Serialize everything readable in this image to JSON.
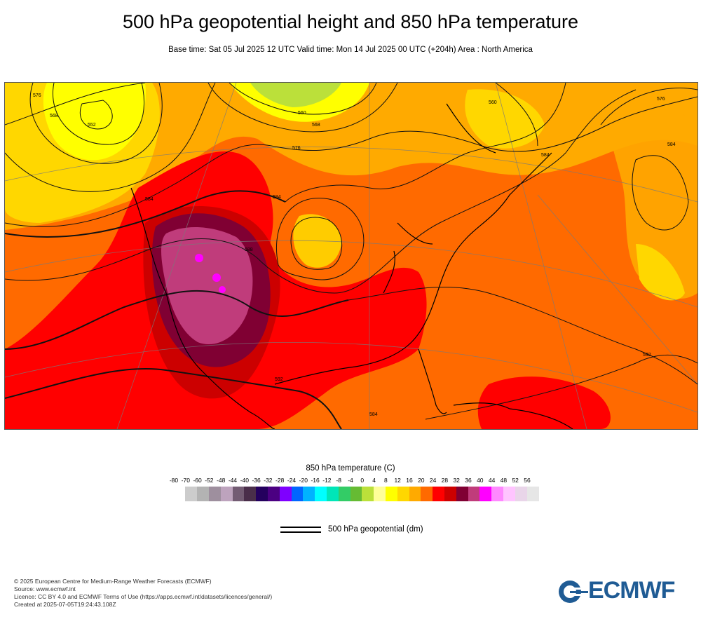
{
  "title": "500 hPa geopotential height and 850 hPa temperature",
  "subtitle": "Base time: Sat 05 Jul 2025 12 UTC Valid time: Mon 14 Jul 2025 00 UTC (+204h) Area : North America",
  "map": {
    "isoline_labels": [
      "552",
      "568",
      "560",
      "576",
      "560",
      "568",
      "576",
      "584",
      "584",
      "588",
      "576",
      "592",
      "584",
      "592",
      "584",
      "584"
    ]
  },
  "legend": {
    "temperature_title": "850 hPa temperature (C)",
    "ticks": [
      "-80",
      "-70",
      "-60",
      "-52",
      "-48",
      "-44",
      "-40",
      "-36",
      "-32",
      "-28",
      "-24",
      "-20",
      "-16",
      "-12",
      "-8",
      "-4",
      "0",
      "4",
      "8",
      "12",
      "16",
      "20",
      "24",
      "28",
      "32",
      "36",
      "40",
      "44",
      "48",
      "52",
      "56"
    ],
    "colors": [
      "#e6e6e6",
      "#cccccc",
      "#b3b3b3",
      "#9e8f9e",
      "#bda3bd",
      "#735c73",
      "#4a2e4a",
      "#24005e",
      "#4b0082",
      "#7f00ff",
      "#0066ff",
      "#00b3ff",
      "#00ffff",
      "#00e6b8",
      "#33cc66",
      "#66bb33",
      "#bbe03a",
      "#ffff99",
      "#ffff00",
      "#ffd700",
      "#ffaa00",
      "#ff6a00",
      "#ff0000",
      "#cc0000",
      "#800033",
      "#c03c7b",
      "#ff00ff",
      "#ff88ff",
      "#ffc4ff",
      "#e9d5e9",
      "#e6e6e6"
    ],
    "geopotential_label": "500 hPa geopotential (dm)"
  },
  "footer": {
    "line1": "© 2025 European Centre for Medium-Range Weather Forecasts (ECMWF)",
    "line2": "Source: www.ecmwf.int",
    "line3": "Licence: CC BY 4.0 and ECMWF Terms of Use (https://apps.ecmwf.int/datasets/licences/general/)",
    "line4": "Created at 2025-07-05T19:24:43.108Z"
  },
  "logo_text": "ECMWF",
  "logo_color": "#1f5b94"
}
